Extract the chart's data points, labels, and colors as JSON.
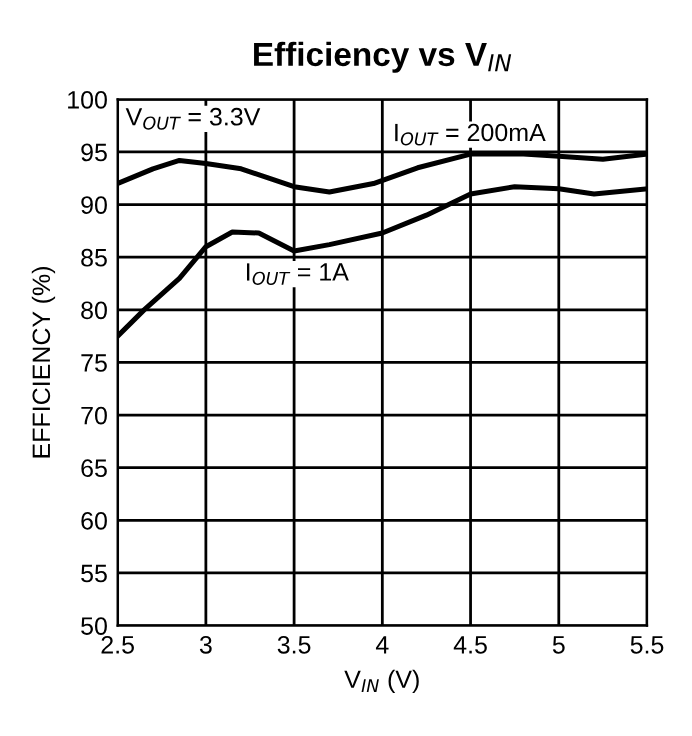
{
  "chart_data": {
    "type": "line",
    "title": "Efficiency vs V$_{IN}$",
    "xlabel": "V$_{IN}$ (V)",
    "ylabel": "EFFICIENCY (%)",
    "annotations": [
      "V$_{OUT}$ = 3.3V"
    ],
    "xlim": [
      2.5,
      5.5
    ],
    "xticks": [
      2.5,
      3,
      3.5,
      4,
      4.5,
      5,
      5.5
    ],
    "ylim": [
      50,
      100
    ],
    "yticks": [
      50,
      55,
      60,
      65,
      70,
      75,
      80,
      85,
      90,
      95,
      100
    ],
    "grid": true,
    "legend": false,
    "series": [
      {
        "name": "I$_{OUT}$ = 200mA",
        "color": "#000000",
        "x": [
          2.5,
          2.7,
          2.85,
          3.0,
          3.2,
          3.5,
          3.7,
          3.95,
          4.2,
          4.5,
          4.8,
          5.0,
          5.25,
          5.5
        ],
        "values": [
          92,
          93.4,
          94.2,
          93.9,
          93.4,
          91.7,
          91.2,
          92,
          93.5,
          94.8,
          94.8,
          94.6,
          94.3,
          94.8
        ]
      },
      {
        "name": "I$_{OUT}$ = 1A",
        "color": "#000000",
        "x": [
          2.5,
          2.65,
          2.85,
          3.0,
          3.15,
          3.3,
          3.5,
          3.7,
          4.0,
          4.25,
          4.5,
          4.75,
          5.0,
          5.2,
          5.5
        ],
        "values": [
          77.5,
          80,
          83,
          86,
          87.4,
          87.3,
          85.6,
          86.2,
          87.3,
          89,
          91,
          91.7,
          91.5,
          91,
          91.5
        ]
      }
    ]
  }
}
